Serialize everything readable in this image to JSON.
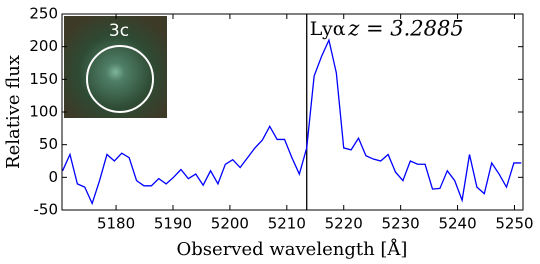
{
  "chart_data": {
    "type": "line",
    "xlabel": "Observed wavelength [Å]",
    "ylabel": "Relative flux",
    "inset_label": "3c",
    "line_label": "Lyα",
    "line_x": 5213.5,
    "annotation": "z = 3.2885",
    "x": [
      5170.6,
      5171.9,
      5173.2,
      5174.5,
      5175.8,
      5177.1,
      5178.4,
      5179.7,
      5181.0,
      5182.3,
      5183.6,
      5184.9,
      5186.2,
      5187.5,
      5188.8,
      5190.1,
      5191.4,
      5192.7,
      5194.0,
      5195.3,
      5196.6,
      5197.9,
      5199.2,
      5200.5,
      5201.8,
      5203.1,
      5204.4,
      5205.7,
      5207.0,
      5208.3,
      5209.6,
      5210.9,
      5212.2,
      5213.5,
      5214.8,
      5216.1,
      5217.4,
      5218.7,
      5220.0,
      5221.3,
      5222.6,
      5223.9,
      5225.2,
      5226.5,
      5227.8,
      5229.1,
      5230.4,
      5231.7,
      5233.0,
      5234.3,
      5235.6,
      5236.9,
      5238.2,
      5239.5,
      5240.8,
      5242.1,
      5243.4,
      5244.7,
      5246.0,
      5247.3,
      5248.6,
      5249.9,
      5251.2
    ],
    "series": [
      {
        "color": "#0000ff",
        "values": [
          10,
          35,
          -10,
          -15,
          -40,
          -5,
          35,
          25,
          37,
          30,
          -5,
          -13,
          -13,
          -2,
          -10,
          0,
          12,
          -2,
          5,
          -12,
          10,
          -10,
          20,
          27,
          15,
          30,
          45,
          57,
          78,
          58,
          58,
          30,
          5,
          45,
          155,
          185,
          210,
          160,
          45,
          42,
          60,
          33,
          28,
          25,
          35,
          8,
          -5,
          25,
          20,
          20,
          -18,
          -17,
          10,
          -5,
          -35,
          35,
          -15,
          -25,
          22,
          5,
          -15,
          22,
          22
        ]
      }
    ],
    "xlim": [
      5170.5,
      5251.5
    ],
    "ylim": [
      -50,
      250
    ],
    "xticks": [
      5180,
      5190,
      5200,
      5210,
      5220,
      5230,
      5240,
      5250
    ],
    "yticks": [
      -50,
      0,
      50,
      100,
      150,
      200,
      250
    ]
  }
}
